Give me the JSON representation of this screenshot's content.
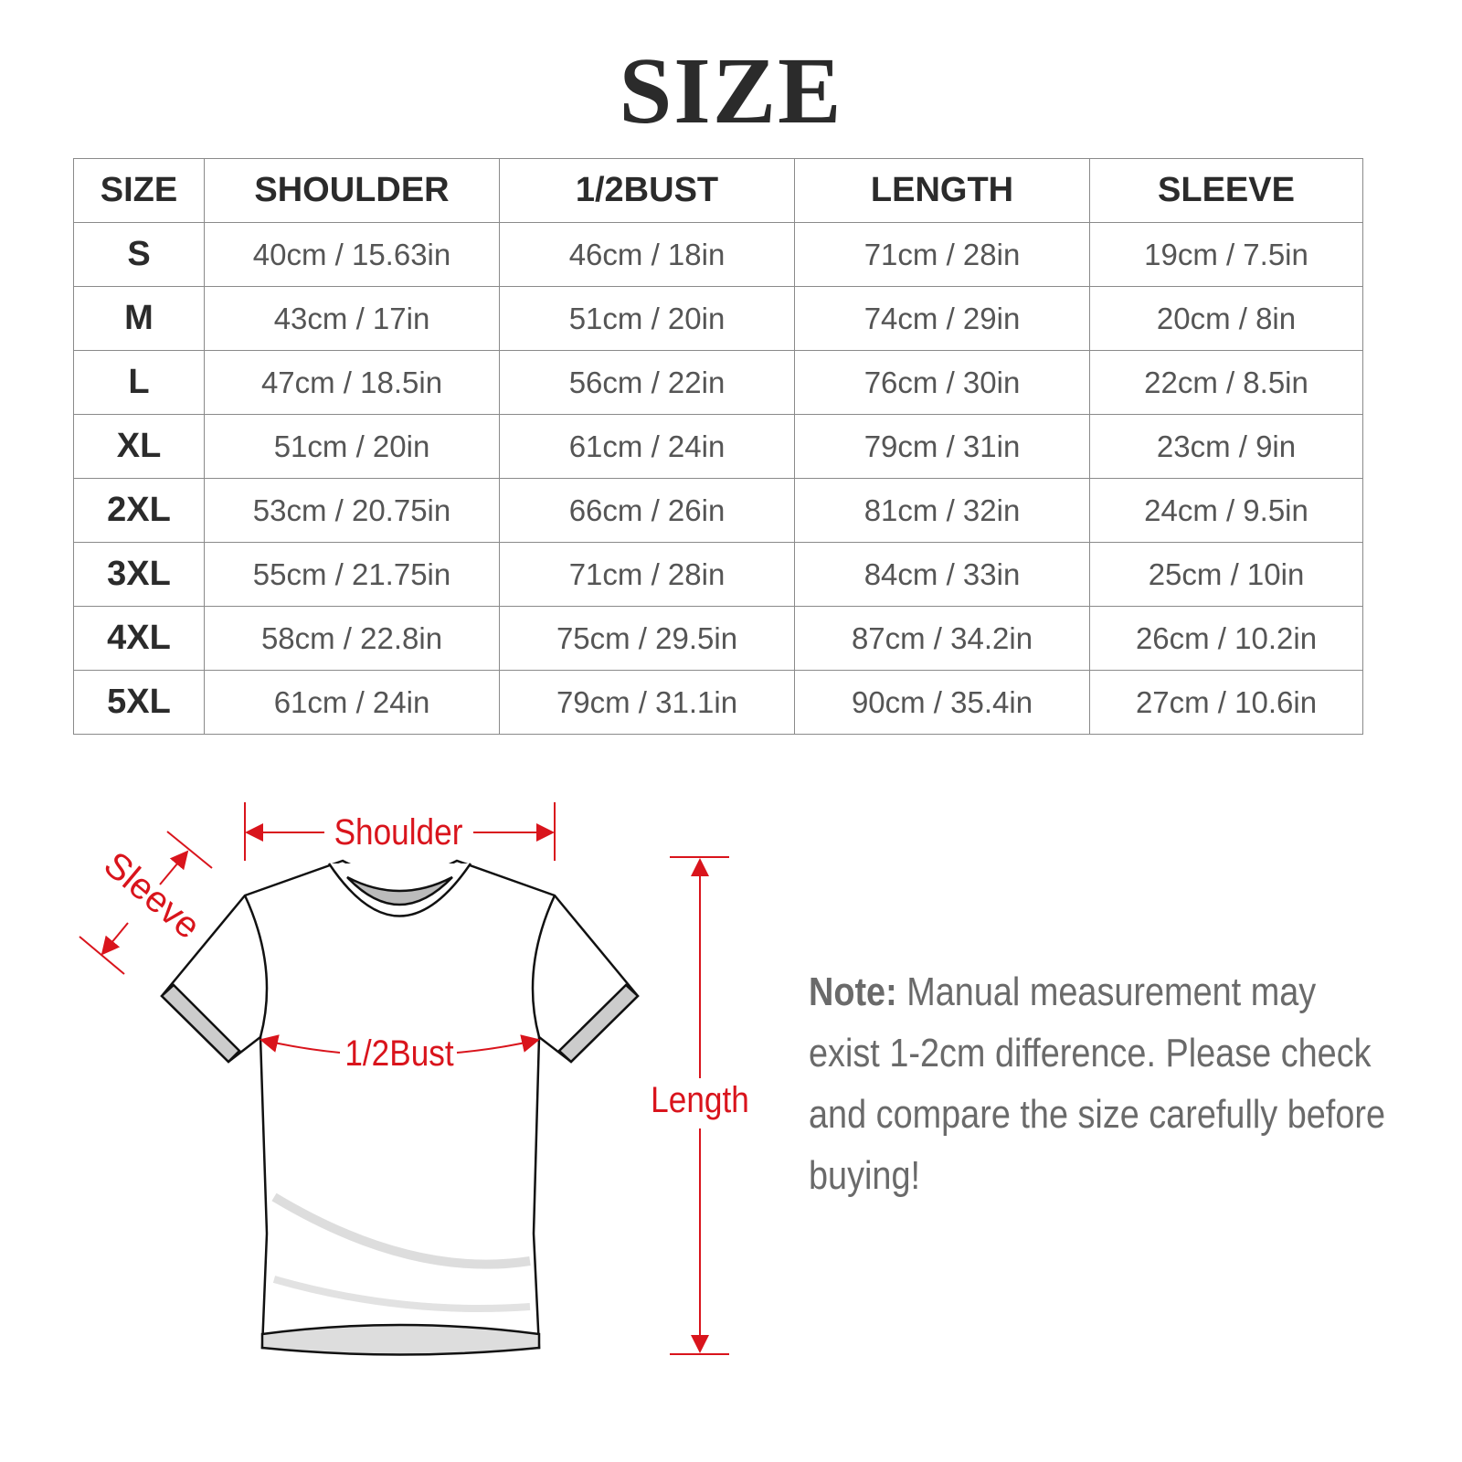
{
  "title": "SIZE",
  "table": {
    "headers": [
      "SIZE",
      "SHOULDER",
      "1/2BUST",
      "LENGTH",
      "SLEEVE"
    ],
    "rows": [
      [
        "S",
        "40cm / 15.63in",
        "46cm / 18in",
        "71cm / 28in",
        "19cm / 7.5in"
      ],
      [
        "M",
        "43cm / 17in",
        "51cm / 20in",
        "74cm / 29in",
        "20cm / 8in"
      ],
      [
        "L",
        "47cm / 18.5in",
        "56cm / 22in",
        "76cm / 30in",
        "22cm / 8.5in"
      ],
      [
        "XL",
        "51cm / 20in",
        "61cm / 24in",
        "79cm / 31in",
        "23cm / 9in"
      ],
      [
        "2XL",
        "53cm / 20.75in",
        "66cm / 26in",
        "81cm / 32in",
        "24cm / 9.5in"
      ],
      [
        "3XL",
        "55cm / 21.75in",
        "71cm / 28in",
        "84cm / 33in",
        "25cm / 10in"
      ],
      [
        "4XL",
        "58cm / 22.8in",
        "75cm / 29.5in",
        "87cm / 34.2in",
        "26cm / 10.2in"
      ],
      [
        "5XL",
        "61cm / 24in",
        "79cm / 31.1in",
        "90cm / 35.4in",
        "27cm / 10.6in"
      ]
    ]
  },
  "diagram": {
    "labels": {
      "shoulder": "Shoulder",
      "sleeve": "Sleeve",
      "bust": "1/2Bust",
      "length": "Length"
    },
    "accent_color": "#d9141c"
  },
  "note": {
    "label": "Note:",
    "text": " Manual measurement may exist 1-2cm difference. Please check and compare the size carefully before buying!"
  }
}
